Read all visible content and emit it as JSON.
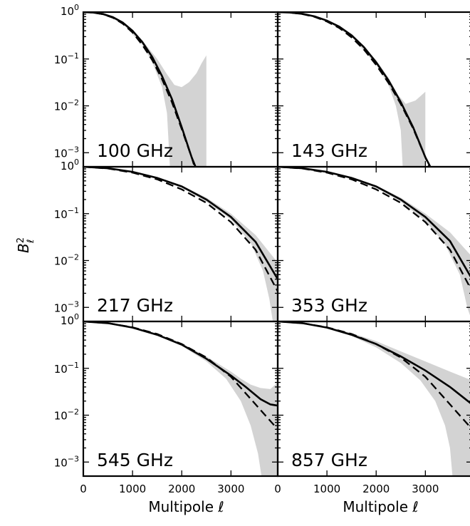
{
  "chart_data": {
    "type": "line",
    "layout": "3x2 grid of log-scale panels",
    "ylabel": "B",
    "ylabel_sup": "2",
    "ylabel_sub": "ℓ",
    "xlabel": "Multipole ℓ",
    "xlim": [
      0,
      3950
    ],
    "ylim_log10": [
      -3.3,
      0
    ],
    "yscale": "log",
    "grid": false,
    "x_ticks": [
      {
        "value": 0,
        "label": "0"
      },
      {
        "value": 1000,
        "label": "1000"
      },
      {
        "value": 2000,
        "label": "2000"
      },
      {
        "value": 3000,
        "label": "3000"
      }
    ],
    "y_ticks": [
      {
        "value": 1,
        "label_base": "10",
        "label_exp": "0"
      },
      {
        "value": 0.1,
        "label_base": "10",
        "label_exp": "−1"
      },
      {
        "value": 0.01,
        "label_base": "10",
        "label_exp": "−2"
      },
      {
        "value": 0.001,
        "label_base": "10",
        "label_exp": "−3"
      }
    ],
    "band_color": "#d3d3d3",
    "solid_color": "#000000",
    "dashed_color": "#000000",
    "panels": [
      {
        "label": "100 GHz",
        "solid": {
          "x": [
            0,
            200,
            400,
            600,
            800,
            1000,
            1200,
            1400,
            1600,
            1800,
            2000,
            2200,
            2280
          ],
          "y": [
            1,
            0.98,
            0.91,
            0.78,
            0.6,
            0.4,
            0.23,
            0.11,
            0.043,
            0.014,
            0.0035,
            0.0008,
            0.0005
          ]
        },
        "dashed": {
          "x": [
            0,
            200,
            400,
            600,
            800,
            1000,
            1200,
            1400,
            1600,
            1800,
            2000,
            2200,
            2260
          ],
          "y": [
            1,
            0.98,
            0.9,
            0.76,
            0.57,
            0.37,
            0.2,
            0.095,
            0.037,
            0.012,
            0.0032,
            0.0008,
            0.0005
          ]
        },
        "band_upper": {
          "x": [
            0,
            400,
            800,
            1200,
            1500,
            1700,
            1850,
            2000,
            2150,
            2300,
            2400,
            2500
          ],
          "y": [
            1,
            0.92,
            0.62,
            0.25,
            0.1,
            0.047,
            0.028,
            0.025,
            0.032,
            0.05,
            0.08,
            0.12
          ]
        },
        "band_lower": {
          "x": [
            0,
            400,
            800,
            1200,
            1400,
            1600,
            1700,
            1760,
            2500
          ],
          "y": [
            1,
            0.9,
            0.57,
            0.2,
            0.085,
            0.025,
            0.007,
            0.0005,
            0.0005
          ]
        }
      },
      {
        "label": "143 GHz",
        "solid": {
          "x": [
            0,
            250,
            500,
            750,
            1000,
            1250,
            1500,
            1750,
            2000,
            2250,
            2500,
            2750,
            3000,
            3100
          ],
          "y": [
            1,
            0.98,
            0.92,
            0.81,
            0.66,
            0.49,
            0.32,
            0.18,
            0.085,
            0.035,
            0.012,
            0.0035,
            0.0008,
            0.0005
          ]
        },
        "dashed": {
          "x": [
            0,
            250,
            500,
            750,
            1000,
            1250,
            1500,
            1750,
            2000,
            2250,
            2500,
            2750,
            3000,
            3080
          ],
          "y": [
            1,
            0.98,
            0.91,
            0.79,
            0.63,
            0.46,
            0.29,
            0.16,
            0.075,
            0.031,
            0.011,
            0.0033,
            0.0008,
            0.0005
          ]
        },
        "band_upper": {
          "x": [
            0,
            500,
            1000,
            1500,
            2000,
            2250,
            2450,
            2600,
            2800,
            3000
          ],
          "y": [
            1,
            0.93,
            0.68,
            0.34,
            0.095,
            0.04,
            0.017,
            0.011,
            0.013,
            0.02
          ]
        },
        "band_lower": {
          "x": [
            0,
            500,
            1000,
            1500,
            2000,
            2250,
            2400,
            2500,
            2540,
            3000
          ],
          "y": [
            1,
            0.91,
            0.64,
            0.3,
            0.075,
            0.028,
            0.01,
            0.003,
            0.0005,
            0.0005
          ]
        }
      },
      {
        "label": "217 GHz",
        "solid": {
          "x": [
            0,
            500,
            1000,
            1500,
            2000,
            2500,
            3000,
            3500,
            3950
          ],
          "y": [
            1,
            0.93,
            0.78,
            0.58,
            0.38,
            0.2,
            0.085,
            0.025,
            0.004
          ]
        },
        "dashed": {
          "x": [
            0,
            500,
            1000,
            1500,
            2000,
            2500,
            3000,
            3500,
            3950
          ],
          "y": [
            1,
            0.92,
            0.75,
            0.54,
            0.33,
            0.17,
            0.066,
            0.017,
            0.0022
          ]
        },
        "band_upper": {
          "x": [
            0,
            500,
            1000,
            1500,
            2000,
            2500,
            3000,
            3500,
            3950
          ],
          "y": [
            1,
            0.94,
            0.8,
            0.6,
            0.4,
            0.22,
            0.1,
            0.035,
            0.009
          ]
        },
        "band_lower": {
          "x": [
            0,
            500,
            1000,
            1500,
            2000,
            2500,
            3000,
            3400,
            3650,
            3780,
            3850,
            3950
          ],
          "y": [
            1,
            0.92,
            0.76,
            0.56,
            0.36,
            0.18,
            0.075,
            0.024,
            0.006,
            0.0015,
            0.0005,
            0.0005
          ]
        }
      },
      {
        "label": "353 GHz",
        "solid": {
          "x": [
            0,
            500,
            1000,
            1500,
            2000,
            2500,
            3000,
            3500,
            3950
          ],
          "y": [
            1,
            0.93,
            0.78,
            0.58,
            0.38,
            0.2,
            0.085,
            0.026,
            0.004
          ]
        },
        "dashed": {
          "x": [
            0,
            500,
            1000,
            1500,
            2000,
            2500,
            3000,
            3500,
            3950
          ],
          "y": [
            1,
            0.92,
            0.75,
            0.54,
            0.33,
            0.17,
            0.066,
            0.017,
            0.0022
          ]
        },
        "band_upper": {
          "x": [
            0,
            500,
            1000,
            1500,
            2000,
            2500,
            3000,
            3500,
            3950
          ],
          "y": [
            1,
            0.94,
            0.8,
            0.6,
            0.4,
            0.22,
            0.1,
            0.04,
            0.012
          ]
        },
        "band_lower": {
          "x": [
            0,
            500,
            1000,
            1500,
            2000,
            2500,
            3000,
            3400,
            3700,
            3850,
            3950
          ],
          "y": [
            1,
            0.92,
            0.76,
            0.56,
            0.36,
            0.18,
            0.07,
            0.022,
            0.005,
            0.001,
            0.0005
          ]
        }
      },
      {
        "label": "545 GHz",
        "solid": {
          "x": [
            0,
            500,
            1000,
            1500,
            2000,
            2500,
            3000,
            3300,
            3600,
            3800,
            3950
          ],
          "y": [
            1,
            0.92,
            0.74,
            0.52,
            0.32,
            0.16,
            0.07,
            0.04,
            0.022,
            0.017,
            0.016
          ]
        },
        "dashed": {
          "x": [
            0,
            500,
            1000,
            1500,
            2000,
            2500,
            3000,
            3500,
            3950
          ],
          "y": [
            1,
            0.92,
            0.75,
            0.54,
            0.33,
            0.17,
            0.066,
            0.017,
            0.005
          ]
        },
        "band_upper": {
          "x": [
            0,
            500,
            1000,
            1500,
            2000,
            2500,
            3000,
            3200,
            3400,
            3600,
            3800,
            3950
          ],
          "y": [
            1,
            0.93,
            0.76,
            0.55,
            0.34,
            0.18,
            0.085,
            0.06,
            0.045,
            0.038,
            0.036,
            0.05
          ]
        },
        "band_lower": {
          "x": [
            0,
            500,
            1000,
            1500,
            2000,
            2500,
            2900,
            3200,
            3400,
            3550,
            3620,
            3950
          ],
          "y": [
            1,
            0.91,
            0.72,
            0.5,
            0.3,
            0.14,
            0.06,
            0.02,
            0.006,
            0.0015,
            0.0005,
            0.0005
          ]
        }
      },
      {
        "label": "857 GHz",
        "solid": {
          "x": [
            0,
            500,
            1000,
            1500,
            2000,
            2500,
            3000,
            3500,
            3950
          ],
          "y": [
            1,
            0.92,
            0.74,
            0.52,
            0.33,
            0.18,
            0.09,
            0.04,
            0.017
          ]
        },
        "dashed": {
          "x": [
            0,
            500,
            1000,
            1500,
            2000,
            2500,
            3000,
            3500,
            3950
          ],
          "y": [
            1,
            0.92,
            0.75,
            0.54,
            0.33,
            0.17,
            0.066,
            0.017,
            0.005
          ]
        },
        "band_upper": {
          "x": [
            0,
            500,
            1000,
            1500,
            2000,
            2500,
            3000,
            3500,
            3950
          ],
          "y": [
            1,
            0.93,
            0.77,
            0.57,
            0.38,
            0.23,
            0.14,
            0.085,
            0.055
          ]
        },
        "band_lower": {
          "x": [
            0,
            500,
            1000,
            1500,
            2000,
            2500,
            2900,
            3200,
            3400,
            3500,
            3550,
            3950
          ],
          "y": [
            1,
            0.91,
            0.72,
            0.49,
            0.28,
            0.13,
            0.055,
            0.02,
            0.006,
            0.002,
            0.0005,
            0.0005
          ]
        }
      }
    ]
  }
}
